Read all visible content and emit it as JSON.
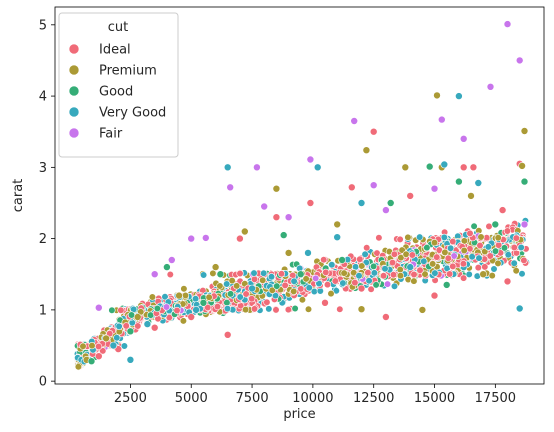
{
  "chart_data": {
    "type": "scatter",
    "xlabel": "price",
    "ylabel": "carat",
    "xlim": [
      -600,
      19500
    ],
    "ylim": [
      -0.04,
      5.25
    ],
    "xticks": [
      2500,
      5000,
      7500,
      10000,
      12500,
      15000,
      17500
    ],
    "xtick_labels": [
      "2500",
      "5000",
      "7500",
      "10000",
      "12500",
      "15000",
      "17500"
    ],
    "yticks": [
      0,
      1,
      2,
      3,
      4,
      5
    ],
    "ytick_labels": [
      "0",
      "1",
      "2",
      "3",
      "4",
      "5"
    ],
    "grid": false,
    "legend": {
      "title": "cut",
      "placement": "upper-left",
      "entries": [
        {
          "name": "Ideal",
          "color": "#f06b78"
        },
        {
          "name": "Premium",
          "color": "#ab9a35"
        },
        {
          "name": "Good",
          "color": "#35ad77"
        },
        {
          "name": "Very Good",
          "color": "#37a9bd"
        },
        {
          "name": "Fair",
          "color": "#c875ec"
        }
      ]
    },
    "band_note": "dense cloud of thousands of points spanning price 326-18823, carat 0.2-2.5",
    "series": [
      {
        "name": "Ideal",
        "points": [
          [
            12500,
            3.5
          ],
          [
            16600,
            3.0
          ],
          [
            16200,
            3.0
          ],
          [
            18500,
            3.05
          ],
          [
            11600,
            2.72
          ],
          [
            9900,
            2.5
          ],
          [
            8500,
            2.3
          ],
          [
            14000,
            2.6
          ],
          [
            17800,
            2.4
          ],
          [
            7000,
            2.0
          ],
          [
            12000,
            1.3
          ],
          [
            15000,
            1.2
          ],
          [
            13000,
            0.9
          ],
          [
            10500,
            1.1
          ],
          [
            18000,
            1.4
          ],
          [
            6500,
            0.65
          ],
          [
            5000,
            0.9
          ],
          [
            3500,
            0.75
          ],
          [
            2000,
            0.45
          ],
          [
            1200,
            0.35
          ]
        ]
      },
      {
        "name": "Premium",
        "points": [
          [
            15100,
            4.01
          ],
          [
            18700,
            3.51
          ],
          [
            12200,
            3.24
          ],
          [
            15300,
            3.0
          ],
          [
            13800,
            3.0
          ],
          [
            18600,
            3.02
          ],
          [
            8500,
            2.7
          ],
          [
            7200,
            2.1
          ],
          [
            11000,
            2.2
          ],
          [
            9000,
            1.8
          ],
          [
            16500,
            2.6
          ],
          [
            14500,
            1.0
          ],
          [
            12000,
            1.01
          ],
          [
            17000,
            1.5
          ],
          [
            6000,
            1.6
          ],
          [
            4500,
            1.2
          ],
          [
            2800,
            0.9
          ],
          [
            1500,
            0.6
          ],
          [
            700,
            0.3
          ]
        ]
      },
      {
        "name": "Good",
        "points": [
          [
            16000,
            2.8
          ],
          [
            14800,
            3.01
          ],
          [
            18700,
            2.8
          ],
          [
            8800,
            2.05
          ],
          [
            13200,
            2.5
          ],
          [
            9500,
            1.5
          ],
          [
            11200,
            1.7
          ],
          [
            6200,
            1.5
          ],
          [
            4000,
            1.6
          ],
          [
            17500,
            2.2
          ],
          [
            2500,
            0.7
          ],
          [
            900,
            0.28
          ],
          [
            15500,
            1.35
          ],
          [
            5500,
            1.1
          ]
        ]
      },
      {
        "name": "Very Good",
        "points": [
          [
            16000,
            4.0
          ],
          [
            15400,
            3.04
          ],
          [
            6500,
            3.0
          ],
          [
            10200,
            3.0
          ],
          [
            16800,
            2.78
          ],
          [
            12000,
            2.5
          ],
          [
            9800,
            1.8
          ],
          [
            2500,
            0.3
          ],
          [
            18500,
            1.02
          ],
          [
            14000,
            1.6
          ],
          [
            7500,
            1.3
          ],
          [
            5200,
            1.0
          ],
          [
            3200,
            0.8
          ],
          [
            1800,
            0.5
          ],
          [
            11000,
            2.02
          ]
        ]
      },
      {
        "name": "Fair",
        "points": [
          [
            18000,
            5.01
          ],
          [
            18500,
            4.5
          ],
          [
            17300,
            4.13
          ],
          [
            15300,
            3.67
          ],
          [
            11700,
            3.65
          ],
          [
            16200,
            3.4
          ],
          [
            9900,
            3.11
          ],
          [
            12500,
            2.75
          ],
          [
            7700,
            3.0
          ],
          [
            6600,
            2.72
          ],
          [
            13000,
            2.4
          ],
          [
            8000,
            2.45
          ],
          [
            5600,
            2.01
          ],
          [
            5000,
            2.0
          ],
          [
            1200,
            1.03
          ],
          [
            3500,
            1.5
          ],
          [
            18700,
            2.2
          ],
          [
            15000,
            2.7
          ],
          [
            9000,
            2.3
          ],
          [
            4200,
            1.7
          ]
        ]
      }
    ]
  }
}
